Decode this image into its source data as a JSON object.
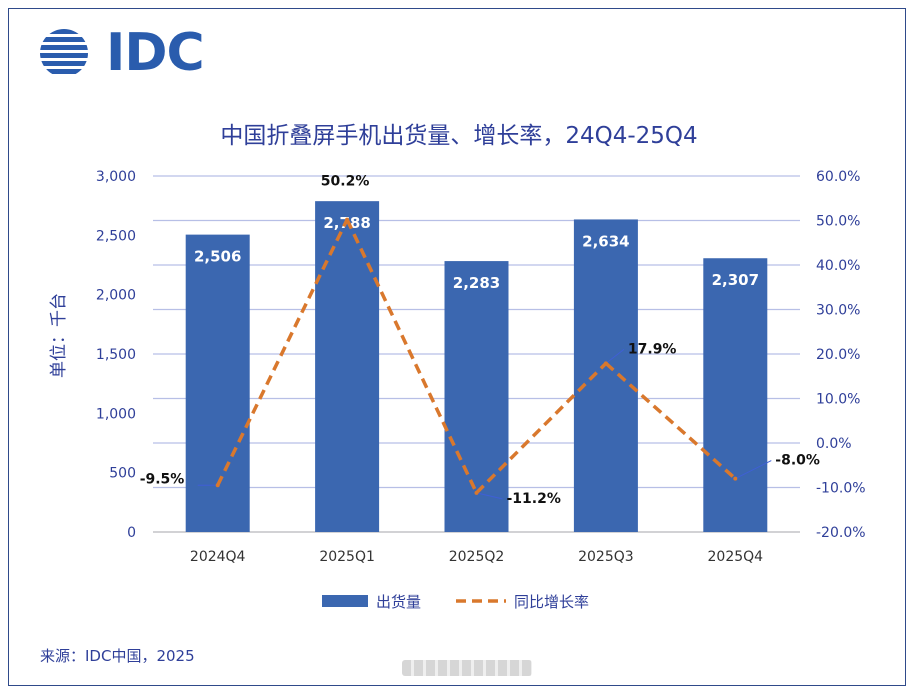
{
  "logo": {
    "text": "IDC"
  },
  "chart_data": {
    "type": "bar",
    "title": "中国折叠屏手机出货量、增长率，24Q4-25Q4",
    "ylabel": "单位：千台",
    "categories": [
      "2024Q4",
      "2025Q1",
      "2025Q2",
      "2025Q3",
      "2025Q4"
    ],
    "series": [
      {
        "name": "出货量",
        "type": "bar",
        "axis": "left",
        "values": [
          2506,
          2788,
          2283,
          2634,
          2307
        ],
        "labels": [
          "2,506",
          "2,788",
          "2,283",
          "2,634",
          "2,307"
        ]
      },
      {
        "name": "同比增长率",
        "type": "line",
        "style": "dashed",
        "axis": "right",
        "values": [
          -9.5,
          50.2,
          -11.2,
          17.9,
          -8.0
        ],
        "labels": [
          "-9.5%",
          "50.2%",
          "-11.2%",
          "17.9%",
          "-8.0%"
        ]
      }
    ],
    "ylim_left": [
      0,
      3000
    ],
    "yticks_left": [
      "0",
      "500",
      "1,000",
      "1,500",
      "2,000",
      "2,500",
      "3,000"
    ],
    "ylim_right": [
      -20,
      60
    ],
    "yticks_right": [
      "-20.0%",
      "-10.0%",
      "0.0%",
      "10.0%",
      "20.0%",
      "30.0%",
      "40.0%",
      "50.0%",
      "60.0%"
    ],
    "grid": true,
    "legend": "bottom-center",
    "colors": {
      "bar": "#3b67b0",
      "line": "#d9782d",
      "grid": "#b7bfe6",
      "axis_text": "#2f3f99",
      "leader": "#3f5fd6"
    }
  },
  "source": "来源：IDC中国，2025"
}
